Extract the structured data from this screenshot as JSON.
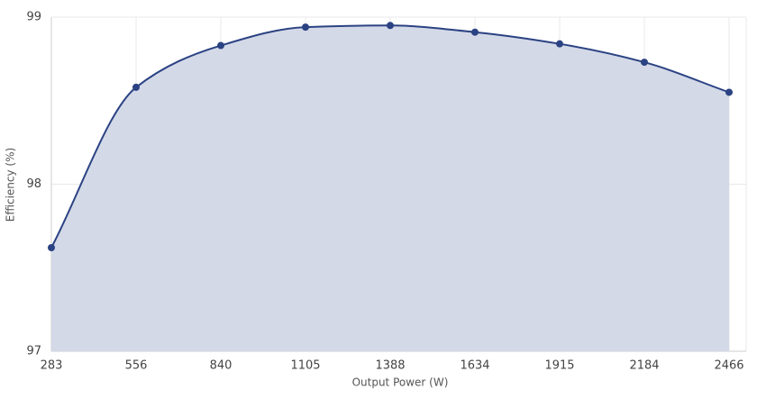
{
  "chart_data": {
    "type": "area",
    "xlabel": "Output Power (W)",
    "ylabel": "Efficiency (%)",
    "categories": [
      "283",
      "556",
      "840",
      "1105",
      "1388",
      "1634",
      "1915",
      "2184",
      "2466"
    ],
    "values": [
      97.62,
      98.58,
      98.83,
      98.94,
      98.95,
      98.91,
      98.84,
      98.73,
      98.55
    ],
    "color": "#2b4283",
    "fill": "#d3d9e7",
    "ylim": [
      97,
      99
    ],
    "yticks": [
      97,
      98,
      99
    ],
    "grid": true
  }
}
